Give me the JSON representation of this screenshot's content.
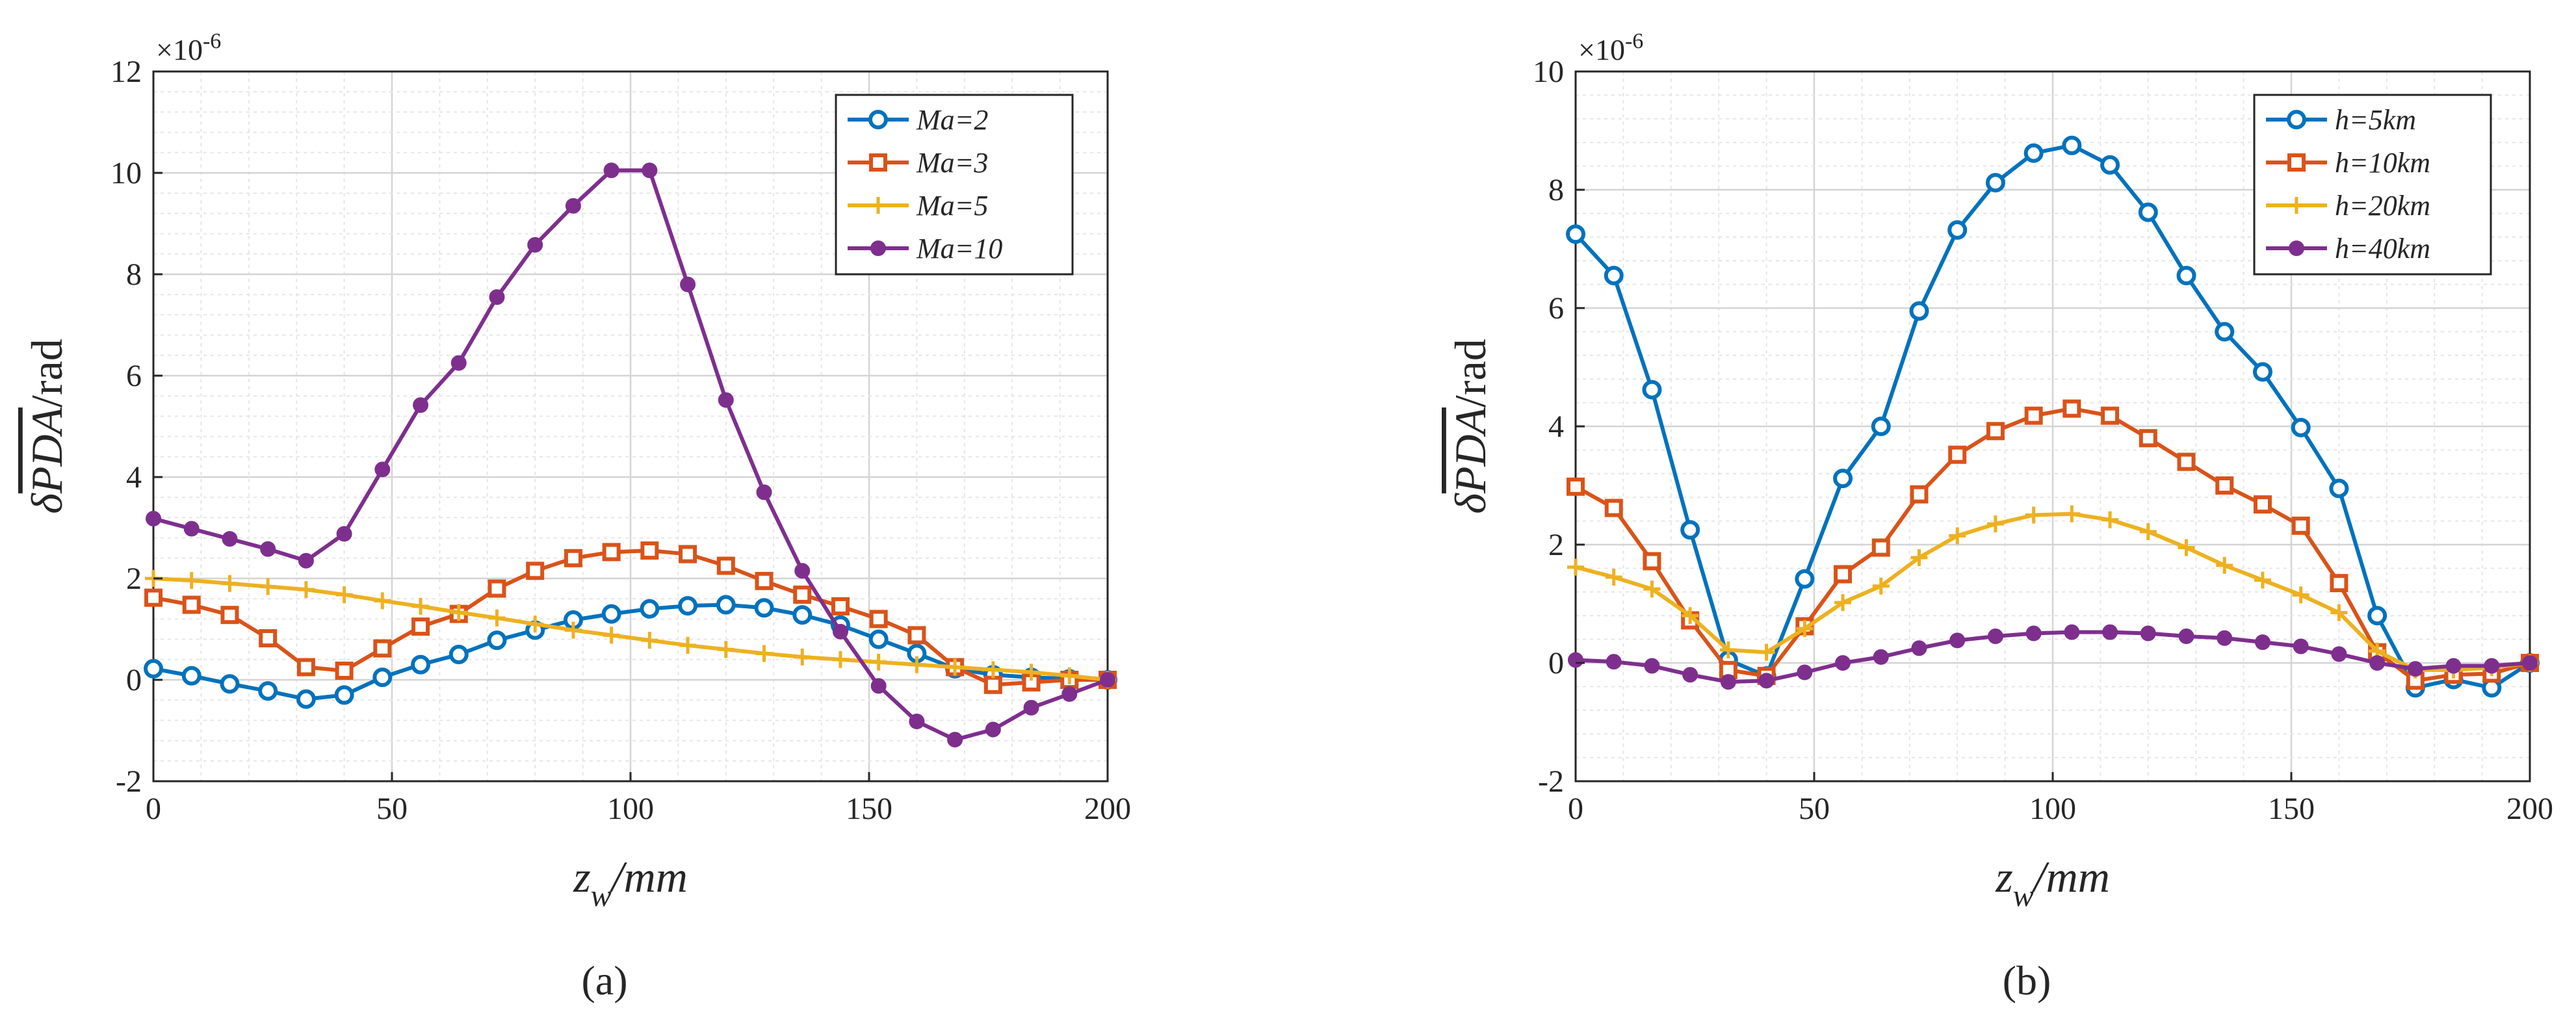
{
  "chart_data": [
    {
      "type": "line",
      "panel_label": "(a)",
      "xlabel": "z_w/mm",
      "ylabel": "δPDA/rad",
      "ylabel_parts": {
        "prefix": "δ",
        "overlined": "PDA",
        "suffix": "/rad"
      },
      "xlabel_parts": {
        "main": "z",
        "sub": "w",
        "unit": "/mm"
      },
      "y_exponent": "×10",
      "y_exponent_power": "-6",
      "xlim": [
        0,
        200
      ],
      "ylim": [
        -2,
        12
      ],
      "xticks": [
        0,
        50,
        100,
        150,
        200
      ],
      "yticks": [
        -2,
        0,
        2,
        4,
        6,
        8,
        10,
        12
      ],
      "grid": true,
      "legend_position": "top-right",
      "x": [
        0,
        8,
        16,
        24,
        32,
        40,
        48,
        56,
        64,
        72,
        80,
        88,
        96,
        104,
        112,
        120,
        128,
        136,
        144,
        152,
        160,
        168,
        176,
        184,
        192,
        200
      ],
      "series": [
        {
          "name": "Ma=2",
          "color": "#0072BD",
          "marker": "circle",
          "values": [
            0.22,
            0.08,
            -0.08,
            -0.22,
            -0.38,
            -0.3,
            0.05,
            0.3,
            0.5,
            0.78,
            0.98,
            1.18,
            1.3,
            1.4,
            1.46,
            1.48,
            1.42,
            1.28,
            1.08,
            0.8,
            0.52,
            0.22,
            0.1,
            0.05,
            0.02,
            0.0
          ]
        },
        {
          "name": "Ma=3",
          "color": "#D95319",
          "marker": "square",
          "values": [
            1.62,
            1.48,
            1.28,
            0.82,
            0.25,
            0.18,
            0.62,
            1.05,
            1.3,
            1.8,
            2.15,
            2.4,
            2.52,
            2.55,
            2.48,
            2.25,
            1.95,
            1.68,
            1.45,
            1.2,
            0.88,
            0.25,
            -0.1,
            -0.05,
            0.0,
            0.0
          ]
        },
        {
          "name": "Ma=5",
          "color": "#EDB120",
          "marker": "plus",
          "values": [
            2.0,
            1.96,
            1.9,
            1.84,
            1.78,
            1.68,
            1.56,
            1.45,
            1.33,
            1.22,
            1.1,
            0.98,
            0.88,
            0.78,
            0.68,
            0.6,
            0.52,
            0.45,
            0.4,
            0.35,
            0.3,
            0.25,
            0.2,
            0.15,
            0.08,
            0.0
          ]
        },
        {
          "name": "Ma=10",
          "color": "#7E2F8E",
          "marker": "dot",
          "values": [
            3.18,
            2.98,
            2.78,
            2.58,
            2.35,
            2.88,
            4.15,
            5.42,
            6.25,
            7.55,
            8.58,
            9.35,
            10.05,
            10.05,
            7.8,
            5.52,
            3.7,
            2.15,
            0.95,
            -0.12,
            -0.82,
            -1.18,
            -0.98,
            -0.55,
            -0.28,
            0.0
          ]
        }
      ]
    },
    {
      "type": "line",
      "panel_label": "(b)",
      "xlabel": "z_w/mm",
      "ylabel": "δPDA/rad",
      "ylabel_parts": {
        "prefix": "δ",
        "overlined": "PDA",
        "suffix": "/rad"
      },
      "xlabel_parts": {
        "main": "z",
        "sub": "w",
        "unit": "/mm"
      },
      "y_exponent": "×10",
      "y_exponent_power": "-6",
      "xlim": [
        0,
        200
      ],
      "ylim": [
        -2,
        10
      ],
      "xticks": [
        0,
        50,
        100,
        150,
        200
      ],
      "yticks": [
        -2,
        0,
        2,
        4,
        6,
        8,
        10
      ],
      "grid": true,
      "legend_position": "top-right",
      "x": [
        0,
        8,
        16,
        24,
        32,
        40,
        48,
        56,
        64,
        72,
        80,
        88,
        96,
        104,
        112,
        120,
        128,
        136,
        144,
        152,
        160,
        168,
        176,
        184,
        192,
        200
      ],
      "series": [
        {
          "name": "h=5km",
          "color": "#0072BD",
          "marker": "circle",
          "values": [
            7.25,
            6.55,
            4.62,
            2.25,
            0.05,
            -0.22,
            1.42,
            3.12,
            4.0,
            5.95,
            7.32,
            8.12,
            8.62,
            8.75,
            8.42,
            7.62,
            6.55,
            5.6,
            4.92,
            3.98,
            2.95,
            0.8,
            -0.42,
            -0.28,
            -0.42,
            0.0
          ]
        },
        {
          "name": "h=10km",
          "color": "#D95319",
          "marker": "square",
          "values": [
            2.98,
            2.62,
            1.72,
            0.72,
            -0.12,
            -0.22,
            0.62,
            1.5,
            1.95,
            2.85,
            3.52,
            3.92,
            4.18,
            4.3,
            4.18,
            3.8,
            3.4,
            3.0,
            2.68,
            2.32,
            1.35,
            0.18,
            -0.3,
            -0.2,
            -0.18,
            0.0
          ]
        },
        {
          "name": "h=20km",
          "color": "#EDB120",
          "marker": "plus",
          "values": [
            1.62,
            1.45,
            1.25,
            0.8,
            0.22,
            0.18,
            0.58,
            1.02,
            1.3,
            1.78,
            2.15,
            2.35,
            2.5,
            2.52,
            2.42,
            2.22,
            1.95,
            1.65,
            1.4,
            1.15,
            0.85,
            0.2,
            -0.12,
            -0.12,
            -0.08,
            0.0
          ]
        },
        {
          "name": "h=40km",
          "color": "#7E2F8E",
          "marker": "dot",
          "values": [
            0.05,
            0.02,
            -0.05,
            -0.2,
            -0.32,
            -0.3,
            -0.16,
            0.0,
            0.1,
            0.25,
            0.38,
            0.45,
            0.5,
            0.52,
            0.52,
            0.5,
            0.45,
            0.42,
            0.35,
            0.28,
            0.15,
            0.0,
            -0.1,
            -0.05,
            -0.05,
            0.0
          ]
        }
      ]
    }
  ]
}
